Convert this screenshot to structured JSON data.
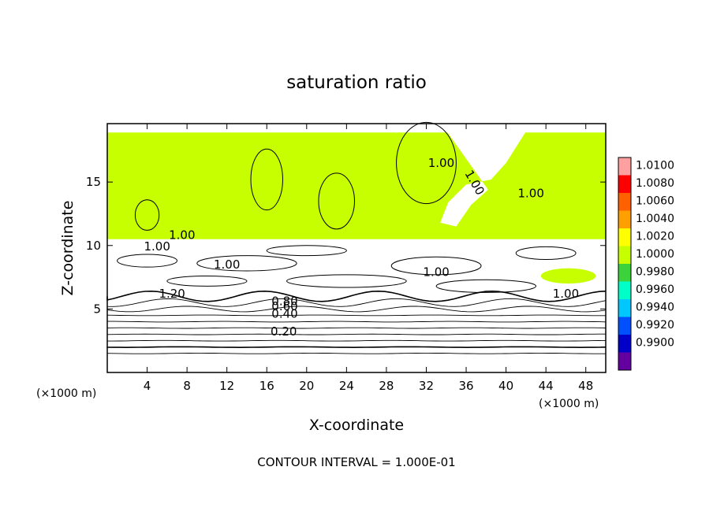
{
  "chart_data": {
    "type": "heatmap",
    "title": "saturation ratio",
    "xlabel": "X-coordinate",
    "ylabel": "Z-coordinate",
    "x_unit_label": "(×1000 m)",
    "y_unit_label": "(×1000 m)",
    "xlim": [
      0,
      50
    ],
    "ylim": [
      0,
      19.6
    ],
    "x_ticks": [
      4,
      8,
      12,
      16,
      20,
      24,
      28,
      32,
      36,
      40,
      44,
      48
    ],
    "y_ticks": [
      5,
      10,
      15
    ],
    "colorbar": {
      "levels": [
        "1.0100",
        "1.0080",
        "1.0060",
        "1.0040",
        "1.0020",
        "1.0000",
        "0.9980",
        "0.9960",
        "0.9940",
        "0.9920",
        "0.9900"
      ],
      "values": [
        1.01,
        1.008,
        1.006,
        1.004,
        1.002,
        1.0,
        0.998,
        0.996,
        0.994,
        0.992,
        0.99
      ],
      "colors": [
        "#ffa0a0",
        "#ff0000",
        "#ff6000",
        "#ffa000",
        "#ffff00",
        "#c8ff00",
        "#3cd23c",
        "#00ffc8",
        "#00c8ff",
        "#0050ff",
        "#0000c8",
        "#6400a0"
      ]
    },
    "filled_regions": [
      {
        "name": "upper-moist-layer",
        "x": [
          0,
          50
        ],
        "z": [
          10.5,
          18.9
        ],
        "value": 1.0
      },
      {
        "name": "subsaturated-wedge",
        "x": [
          33,
          42
        ],
        "z": [
          11,
          19.6
        ],
        "value": 0.97
      },
      {
        "name": "low-cloud-patch",
        "x": [
          43.5,
          49
        ],
        "z": [
          7,
          8.2
        ],
        "value": 1.0015
      }
    ],
    "contour_labels": [
      "1.00",
      "1.00",
      "1.00",
      "1.00",
      "1.20",
      "1.00",
      "1.00",
      "1.00",
      "1.00",
      "0.80",
      "0.60",
      "0.40",
      "0.20"
    ],
    "contour_levels": [
      0.1,
      0.2,
      0.3,
      0.4,
      0.5,
      0.6,
      0.7,
      0.8,
      0.9,
      1.0
    ],
    "contour_interval_note": "CONTOUR INTERVAL = 1.000E-01"
  }
}
